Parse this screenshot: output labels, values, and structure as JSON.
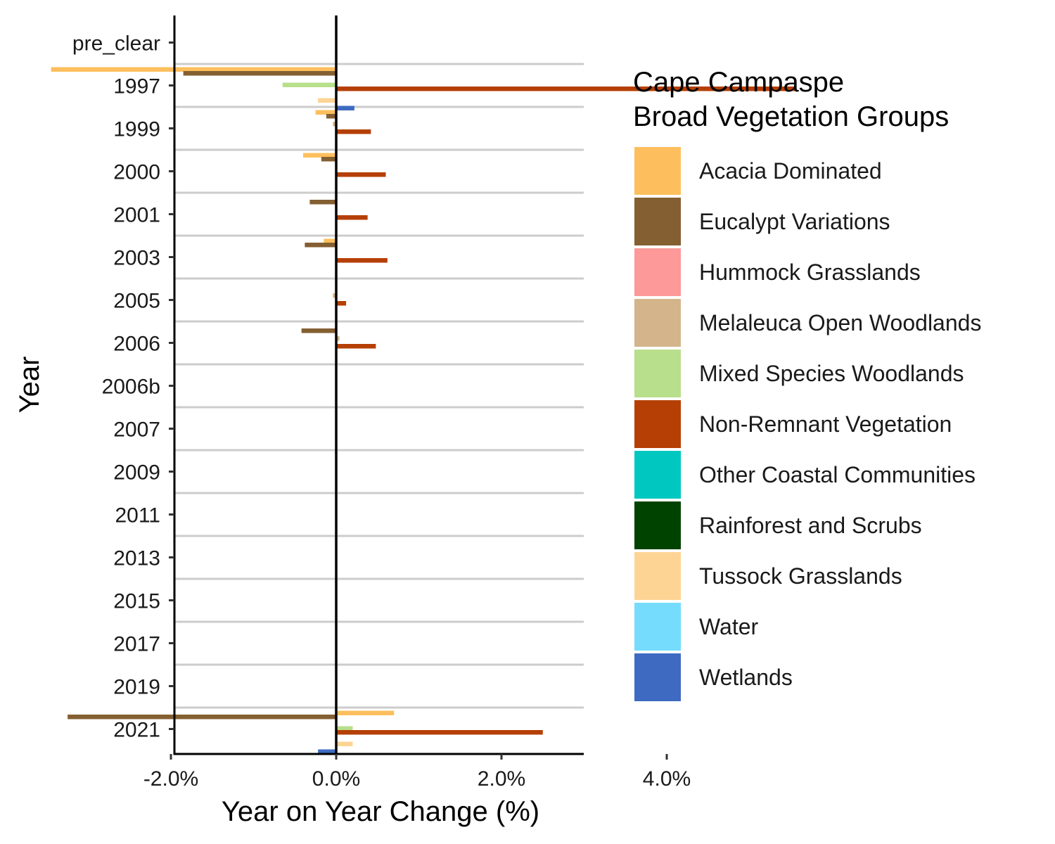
{
  "chart_data": {
    "type": "bar",
    "orientation": "horizontal",
    "xlabel": "Year on Year Change (%)",
    "ylabel": "Year",
    "xlim": [
      -3.95,
      5.95
    ],
    "x_ticks": [
      {
        "value": -2,
        "label": "-2.0%"
      },
      {
        "value": 0,
        "label": "0.0%"
      },
      {
        "value": 2,
        "label": "2.0%"
      },
      {
        "value": 4,
        "label": "4.0%"
      }
    ],
    "categories": [
      "pre_clear",
      "1997",
      "1999",
      "2000",
      "2001",
      "2003",
      "2005",
      "2006",
      "2006b",
      "2007",
      "2009",
      "2011",
      "2013",
      "2015",
      "2017",
      "2019",
      "2021"
    ],
    "grid": "horizontal separators between categories",
    "legend": {
      "title_lines": [
        "Cape Campaspe",
        "Broad Vegetation Groups"
      ],
      "position": "right"
    },
    "series": [
      {
        "name": "Acacia Dominated",
        "color": "#FDBF5E",
        "values": [
          0,
          -3.45,
          -0.25,
          -0.4,
          0,
          -0.15,
          0,
          0,
          0,
          0,
          0,
          0,
          0,
          0,
          0,
          0,
          0.7
        ]
      },
      {
        "name": "Eucalypt Variations",
        "color": "#845F31",
        "values": [
          0,
          -1.85,
          -0.12,
          -0.18,
          -0.32,
          -0.38,
          0,
          -0.42,
          0,
          0,
          0,
          0,
          0,
          0,
          0,
          0,
          -3.25
        ]
      },
      {
        "name": "Hummock Grasslands",
        "color": "#FD9999",
        "values": [
          0,
          0,
          0,
          0,
          0,
          0,
          0,
          0,
          0,
          0,
          0,
          0,
          0,
          0,
          0,
          0,
          0
        ]
      },
      {
        "name": "Melaleuca Open Woodlands",
        "color": "#D3B48B",
        "values": [
          0,
          0,
          -0.04,
          0,
          0,
          0,
          -0.04,
          0.04,
          0,
          0,
          0,
          0,
          0,
          0,
          0,
          0,
          0
        ]
      },
      {
        "name": "Mixed Species Woodlands",
        "color": "#B8DF8B",
        "values": [
          0,
          -0.65,
          0,
          0,
          0,
          0,
          0,
          0,
          0,
          0,
          0,
          0,
          0,
          0,
          0,
          0,
          0.2
        ]
      },
      {
        "name": "Non-Remnant Vegetation",
        "color": "#B53F04",
        "values": [
          0,
          5.55,
          0.42,
          0.6,
          0.38,
          0.62,
          0.12,
          0.48,
          0,
          0,
          0,
          0,
          0,
          0,
          0,
          0,
          2.5
        ]
      },
      {
        "name": "Other Coastal Communities",
        "color": "#00C8C1",
        "values": [
          0,
          0,
          0,
          0,
          0,
          0,
          0,
          0,
          0,
          0,
          0,
          0,
          0,
          0,
          0,
          0,
          0
        ]
      },
      {
        "name": "Rainforest and Scrubs",
        "color": "#004200",
        "values": [
          0,
          0,
          0,
          0,
          0,
          0,
          0,
          0,
          0,
          0,
          0,
          0,
          0,
          0,
          0,
          0,
          0
        ]
      },
      {
        "name": "Tussock Grasslands",
        "color": "#FED495",
        "values": [
          0,
          -0.22,
          0,
          0,
          0,
          0,
          0,
          0,
          0,
          0,
          0,
          0,
          0,
          0,
          0,
          0,
          0.2
        ]
      },
      {
        "name": "Water",
        "color": "#75DCFE",
        "values": [
          0,
          0,
          0,
          0,
          0,
          0,
          0,
          0,
          0,
          0,
          0,
          0,
          0,
          0,
          0,
          0,
          0
        ]
      },
      {
        "name": "Wetlands",
        "color": "#3E6BC1",
        "values": [
          0,
          0.22,
          0,
          0,
          0,
          0,
          0,
          0,
          0,
          0,
          0,
          0,
          0,
          0,
          0,
          0,
          -0.22
        ]
      }
    ]
  }
}
